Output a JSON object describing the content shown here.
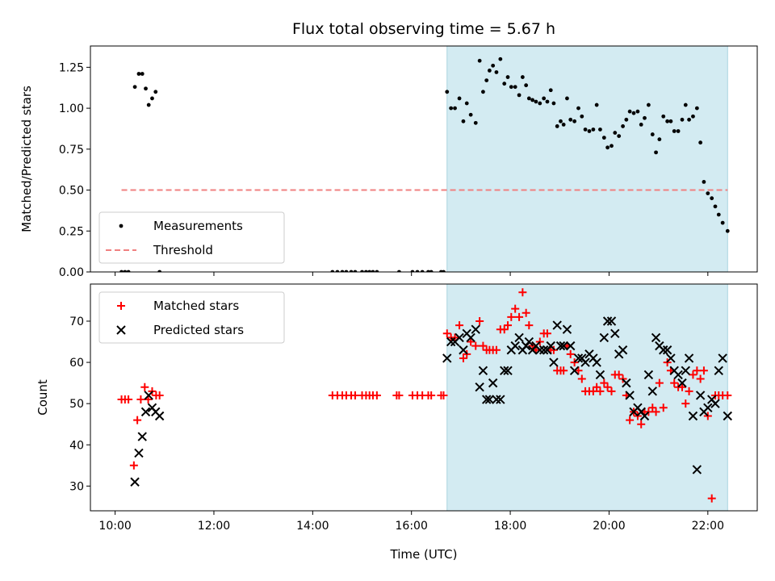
{
  "chart_data": {
    "type": "scatter",
    "title": "Flux total observing time = 5.67 h",
    "xlabel": "Time (UTC)",
    "xlim": [
      9.5,
      23.0
    ],
    "x_ticks": [
      10,
      12,
      14,
      16,
      18,
      20,
      22
    ],
    "x_tick_labels": [
      "10:00",
      "12:00",
      "14:00",
      "16:00",
      "18:00",
      "20:00",
      "22:00"
    ],
    "observing_window": [
      16.72,
      22.4
    ],
    "colors": {
      "window": "#d3ebf2",
      "window_edge": "#a9d4df",
      "measurement": "#000000",
      "threshold": "#f08080",
      "matched": "#ff0000",
      "predicted": "#000000"
    },
    "panels": [
      {
        "ylabel": "Matched/Predicted stars",
        "ylim": [
          0.0,
          1.38
        ],
        "y_ticks": [
          0.0,
          0.25,
          0.5,
          0.75,
          1.0,
          1.25
        ],
        "y_tick_labels": [
          "0.00",
          "0.25",
          "0.50",
          "0.75",
          "1.00",
          "1.25"
        ],
        "legend": {
          "location": "lower-left",
          "entries": [
            "Measurements",
            "Threshold"
          ]
        },
        "threshold": {
          "name": "Threshold",
          "y": 0.5,
          "x_range": [
            10.13,
            22.4
          ]
        },
        "series": [
          {
            "name": "Measurements",
            "marker": "dot",
            "x": [
              10.13,
              10.2,
              10.27,
              10.4,
              10.48,
              10.55,
              10.62,
              10.68,
              10.75,
              10.82,
              10.9,
              14.4,
              14.5,
              14.6,
              14.68,
              14.78,
              14.86,
              15.0,
              15.08,
              15.15,
              15.22,
              15.3,
              15.75,
              16.02,
              16.12,
              16.22,
              16.34,
              16.4,
              16.6,
              16.65,
              16.72,
              16.8,
              16.88,
              16.97,
              17.05,
              17.12,
              17.2,
              17.3,
              17.38,
              17.45,
              17.52,
              17.58,
              17.65,
              17.72,
              17.8,
              17.88,
              17.95,
              18.02,
              18.1,
              18.18,
              18.25,
              18.32,
              18.38,
              18.45,
              18.52,
              18.6,
              18.68,
              18.75,
              18.82,
              18.88,
              18.95,
              19.02,
              19.08,
              19.15,
              19.22,
              19.3,
              19.38,
              19.45,
              19.52,
              19.6,
              19.68,
              19.75,
              19.82,
              19.9,
              19.97,
              20.05,
              20.12,
              20.2,
              20.28,
              20.35,
              20.42,
              20.5,
              20.58,
              20.65,
              20.72,
              20.8,
              20.88,
              20.95,
              21.02,
              21.1,
              21.18,
              21.25,
              21.32,
              21.4,
              21.48,
              21.55,
              21.62,
              21.7,
              21.78,
              21.85,
              21.92,
              22.0,
              22.08,
              22.15,
              22.22,
              22.3,
              22.4
            ],
            "y": [
              0.0,
              0.0,
              0.0,
              1.13,
              1.21,
              1.21,
              1.12,
              1.02,
              1.06,
              1.1,
              0.0,
              0.0,
              0.0,
              0.0,
              0.0,
              0.0,
              0.0,
              0.0,
              0.0,
              0.0,
              0.0,
              0.0,
              0.0,
              0.0,
              0.0,
              0.0,
              0.0,
              0.0,
              0.0,
              0.0,
              1.1,
              1.0,
              1.0,
              1.06,
              0.92,
              1.03,
              0.96,
              0.91,
              1.29,
              1.1,
              1.17,
              1.23,
              1.26,
              1.22,
              1.3,
              1.15,
              1.19,
              1.13,
              1.13,
              1.08,
              1.19,
              1.14,
              1.06,
              1.05,
              1.04,
              1.03,
              1.06,
              1.04,
              1.11,
              1.03,
              0.89,
              0.92,
              0.9,
              1.06,
              0.93,
              0.92,
              1.0,
              0.95,
              0.87,
              0.86,
              0.87,
              1.02,
              0.87,
              0.82,
              0.76,
              0.77,
              0.85,
              0.83,
              0.89,
              0.93,
              0.98,
              0.97,
              0.98,
              0.9,
              0.94,
              1.02,
              0.84,
              0.73,
              0.81,
              0.95,
              0.92,
              0.92,
              0.86,
              0.86,
              0.93,
              1.02,
              0.93,
              0.95,
              1.0,
              0.79,
              0.55,
              0.48,
              0.45,
              0.4,
              0.35,
              0.3,
              0.25
            ]
          }
        ]
      },
      {
        "ylabel": "Count",
        "ylim": [
          24,
          79
        ],
        "y_ticks": [
          30,
          40,
          50,
          60,
          70
        ],
        "y_tick_labels": [
          "30",
          "40",
          "50",
          "60",
          "70"
        ],
        "legend": {
          "location": "upper-left",
          "entries": [
            "Matched stars",
            "Predicted stars"
          ]
        },
        "series": [
          {
            "name": "Matched stars",
            "marker": "plus",
            "x": [
              10.13,
              10.2,
              10.27,
              10.38,
              10.45,
              10.52,
              10.6,
              10.67,
              10.75,
              10.83,
              10.9,
              14.4,
              14.5,
              14.6,
              14.68,
              14.78,
              14.86,
              15.0,
              15.08,
              15.15,
              15.22,
              15.3,
              15.7,
              15.75,
              16.02,
              16.12,
              16.22,
              16.34,
              16.4,
              16.6,
              16.65,
              16.72,
              16.8,
              16.88,
              16.97,
              17.05,
              17.12,
              17.2,
              17.3,
              17.38,
              17.45,
              17.52,
              17.58,
              17.65,
              17.72,
              17.8,
              17.88,
              17.95,
              18.02,
              18.1,
              18.18,
              18.25,
              18.32,
              18.38,
              18.45,
              18.52,
              18.6,
              18.68,
              18.75,
              18.82,
              18.88,
              18.95,
              19.02,
              19.08,
              19.15,
              19.22,
              19.3,
              19.38,
              19.45,
              19.52,
              19.6,
              19.68,
              19.75,
              19.82,
              19.9,
              19.97,
              20.05,
              20.12,
              20.2,
              20.28,
              20.35,
              20.42,
              20.5,
              20.58,
              20.65,
              20.72,
              20.8,
              20.88,
              20.95,
              21.02,
              21.1,
              21.18,
              21.25,
              21.32,
              21.4,
              21.48,
              21.55,
              21.62,
              21.7,
              21.78,
              21.85,
              21.92,
              22.0,
              22.08,
              22.15,
              22.22,
              22.3,
              22.4
            ],
            "y": [
              51,
              51,
              51,
              35,
              46,
              51,
              54,
              51,
              53,
              52,
              52,
              52,
              52,
              52,
              52,
              52,
              52,
              52,
              52,
              52,
              52,
              52,
              52,
              52,
              52,
              52,
              52,
              52,
              52,
              52,
              52,
              67,
              66,
              66,
              69,
              61,
              62,
              65,
              64,
              70,
              64,
              63,
              63,
              63,
              63,
              68,
              68,
              69,
              71,
              73,
              71,
              77,
              72,
              69,
              64,
              63,
              65,
              67,
              67,
              63,
              63,
              58,
              58,
              58,
              64,
              62,
              60,
              58,
              56,
              53,
              53,
              53,
              54,
              53,
              55,
              54,
              53,
              57,
              57,
              56,
              52,
              46,
              48,
              47,
              45,
              48,
              48,
              49,
              48,
              55,
              49,
              60,
              58,
              55,
              54,
              54,
              50,
              53,
              57,
              58,
              56,
              58,
              47,
              27,
              52,
              52,
              52,
              52
            ]
          },
          {
            "name": "Predicted stars",
            "marker": "x",
            "x": [
              10.4,
              10.48,
              10.55,
              10.62,
              10.68,
              10.75,
              10.82,
              10.9,
              16.72,
              16.8,
              16.88,
              16.97,
              17.05,
              17.12,
              17.2,
              17.3,
              17.38,
              17.45,
              17.52,
              17.58,
              17.65,
              17.72,
              17.8,
              17.88,
              17.95,
              18.02,
              18.1,
              18.18,
              18.25,
              18.32,
              18.38,
              18.45,
              18.52,
              18.6,
              18.68,
              18.75,
              18.82,
              18.88,
              18.95,
              19.02,
              19.08,
              19.15,
              19.22,
              19.3,
              19.38,
              19.45,
              19.52,
              19.6,
              19.68,
              19.75,
              19.82,
              19.9,
              19.97,
              20.05,
              20.12,
              20.2,
              20.28,
              20.35,
              20.42,
              20.5,
              20.58,
              20.65,
              20.72,
              20.8,
              20.88,
              20.95,
              21.02,
              21.1,
              21.18,
              21.25,
              21.32,
              21.4,
              21.48,
              21.55,
              21.62,
              21.7,
              21.78,
              21.85,
              21.92,
              22.0,
              22.08,
              22.15,
              22.22,
              22.3,
              22.4
            ],
            "y": [
              31,
              38,
              42,
              48,
              52,
              49,
              48,
              47,
              61,
              65,
              65,
              66,
              63,
              67,
              66,
              68,
              54,
              58,
              51,
              51,
              55,
              51,
              51,
              58,
              58,
              63,
              64,
              66,
              63,
              64,
              65,
              63,
              64,
              63,
              63,
              63,
              64,
              60,
              69,
              64,
              64,
              68,
              64,
              58,
              61,
              61,
              60,
              62,
              61,
              60,
              57,
              66,
              70,
              70,
              67,
              62,
              63,
              55,
              52,
              48,
              49,
              48,
              47,
              57,
              53,
              66,
              64,
              63,
              63,
              61,
              58,
              57,
              55,
              58,
              61,
              47,
              34,
              52,
              48,
              49,
              51,
              50,
              58,
              61,
              47
            ]
          }
        ]
      }
    ]
  }
}
